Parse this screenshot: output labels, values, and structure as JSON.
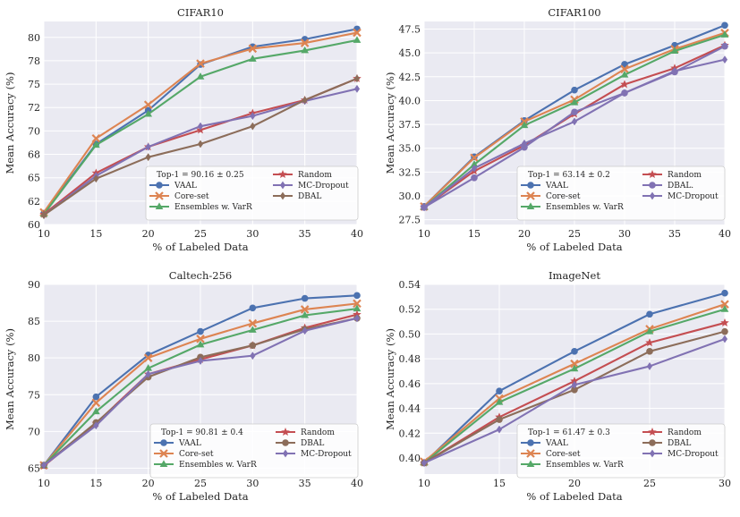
{
  "colors": {
    "VAAL": "#4c72b0",
    "Core-set": "#dd8452",
    "Ensembles w. VarR": "#55a868",
    "Random": "#c44e52",
    "MC-Dropout": "#8172b3",
    "DBAL": "#8c6d5a",
    "DBAL.": "#8172b3"
  },
  "chart_data": [
    {
      "type": "line",
      "title": "CIFAR10",
      "xlabel": "% of Labeled Data",
      "ylabel": "Mean Accuracy (%)",
      "xlim": [
        10,
        40
      ],
      "ylim": [
        60,
        81.7
      ],
      "xticks": [
        10,
        15,
        20,
        25,
        30,
        35,
        40
      ],
      "yticks": [
        60,
        62.5,
        65,
        67.5,
        70,
        72.5,
        75,
        77.5,
        80
      ],
      "ytick_labels": [
        "60",
        "62",
        "65",
        "68",
        "70",
        "72",
        "75",
        "78",
        "80"
      ],
      "x": [
        10,
        15,
        20,
        25,
        30,
        35,
        40
      ],
      "legend_title": "Top-1 = 90.16 ± 0.25",
      "series": [
        {
          "name": "VAAL",
          "marker": "circle",
          "values": [
            61.2,
            68.6,
            72.2,
            77.1,
            79.0,
            79.8,
            80.9
          ]
        },
        {
          "name": "Core-set",
          "marker": "x",
          "values": [
            61.3,
            69.2,
            72.8,
            77.2,
            78.8,
            79.4,
            80.5
          ]
        },
        {
          "name": "Ensembles w. VarR",
          "marker": "triangle",
          "values": [
            61.1,
            68.5,
            71.8,
            75.8,
            77.7,
            78.6,
            79.7
          ]
        },
        {
          "name": "Random",
          "marker": "star",
          "values": [
            61.1,
            65.5,
            68.3,
            70.1,
            71.9,
            73.3,
            75.6
          ]
        },
        {
          "name": "MC-Dropout",
          "marker": "diamond",
          "values": [
            61.0,
            65.2,
            68.3,
            70.5,
            71.6,
            73.2,
            74.5
          ]
        },
        {
          "name": "DBAL",
          "marker": "diamond",
          "values": [
            61.0,
            64.9,
            67.2,
            68.6,
            70.5,
            73.3,
            75.6
          ]
        }
      ]
    },
    {
      "type": "line",
      "title": "CIFAR100",
      "xlabel": "% of Labeled Data",
      "ylabel": "Mean Accuracy (%)",
      "xlim": [
        10,
        40
      ],
      "ylim": [
        27,
        48.3
      ],
      "xticks": [
        10,
        15,
        20,
        25,
        30,
        35,
        40
      ],
      "yticks": [
        27.5,
        30,
        32.5,
        35,
        37.5,
        40,
        42.5,
        45,
        47.5
      ],
      "ytick_labels": [
        "27.5",
        "30.0",
        "32.5",
        "35.0",
        "37.5",
        "40.0",
        "42.5",
        "45.0",
        "47.5"
      ],
      "x": [
        10,
        15,
        20,
        25,
        30,
        35,
        40
      ],
      "legend_title": "Top-1 = 63.14 ± 0.2",
      "series": [
        {
          "name": "VAAL",
          "marker": "circle",
          "values": [
            28.9,
            34.1,
            37.9,
            41.1,
            43.8,
            45.8,
            47.9
          ]
        },
        {
          "name": "Core-set",
          "marker": "x",
          "values": [
            28.9,
            34.0,
            37.8,
            40.1,
            43.3,
            45.4,
            47.1
          ]
        },
        {
          "name": "Ensembles w. VarR",
          "marker": "triangle",
          "values": [
            28.8,
            33.3,
            37.4,
            39.8,
            42.7,
            45.2,
            46.9
          ]
        },
        {
          "name": "Random",
          "marker": "star",
          "values": [
            28.8,
            32.6,
            35.3,
            38.6,
            41.7,
            43.4,
            45.8
          ]
        },
        {
          "name": "DBAL.",
          "marker": "circle",
          "values": [
            28.8,
            31.9,
            35.1,
            38.8,
            40.8,
            43.0,
            45.7
          ]
        },
        {
          "name": "MC-Dropout",
          "marker": "diamond",
          "values": [
            28.8,
            32.9,
            35.5,
            37.8,
            40.8,
            43.1,
            44.3
          ]
        }
      ]
    },
    {
      "type": "line",
      "title": "Caltech-256",
      "xlabel": "% of Labeled Data",
      "ylabel": "Mean Accuracy (%)",
      "xlim": [
        10,
        40
      ],
      "ylim": [
        64.2,
        90
      ],
      "xticks": [
        10,
        15,
        20,
        25,
        30,
        35,
        40
      ],
      "yticks": [
        65,
        70,
        75,
        80,
        85,
        90
      ],
      "ytick_labels": [
        "65",
        "70",
        "75",
        "80",
        "85",
        "90"
      ],
      "x": [
        10,
        15,
        20,
        25,
        30,
        35,
        40
      ],
      "legend_title": "Top-1 = 90.81 ± 0.4",
      "series": [
        {
          "name": "VAAL",
          "marker": "circle",
          "values": [
            65.4,
            74.7,
            80.4,
            83.6,
            86.8,
            88.1,
            88.5
          ]
        },
        {
          "name": "Core-set",
          "marker": "x",
          "values": [
            65.4,
            73.9,
            80.0,
            82.6,
            84.7,
            86.6,
            87.4
          ]
        },
        {
          "name": "Ensembles w. VarR",
          "marker": "triangle",
          "values": [
            65.4,
            72.7,
            78.6,
            81.8,
            83.8,
            85.8,
            86.7
          ]
        },
        {
          "name": "Random",
          "marker": "star",
          "values": [
            65.3,
            71.1,
            77.8,
            79.8,
            81.7,
            84.1,
            85.9
          ]
        },
        {
          "name": "DBAL",
          "marker": "circle",
          "values": [
            65.4,
            71.2,
            77.4,
            80.1,
            81.7,
            83.9,
            85.4
          ]
        },
        {
          "name": "MC-Dropout",
          "marker": "diamond",
          "values": [
            65.4,
            70.8,
            77.8,
            79.6,
            80.3,
            83.7,
            85.4
          ]
        }
      ]
    },
    {
      "type": "line",
      "title": "ImageNet",
      "xlabel": "% of Labeled Data",
      "ylabel": "Mean Accuracy (%)",
      "xlim": [
        10,
        30
      ],
      "ylim": [
        0.387,
        0.54
      ],
      "xticks": [
        10,
        15,
        20,
        25,
        30
      ],
      "yticks": [
        0.4,
        0.42,
        0.44,
        0.46,
        0.48,
        0.5,
        0.52,
        0.54
      ],
      "ytick_labels": [
        "0.40",
        "0.42",
        "0.44",
        "0.46",
        "0.48",
        "0.50",
        "0.52",
        "0.54"
      ],
      "x": [
        10,
        15,
        20,
        25,
        30
      ],
      "legend_title": "Top-1  = 61.47 ± 0.3",
      "series": [
        {
          "name": "VAAL",
          "marker": "circle",
          "values": [
            0.396,
            0.454,
            0.486,
            0.516,
            0.533
          ]
        },
        {
          "name": "Core-set",
          "marker": "x",
          "values": [
            0.397,
            0.448,
            0.476,
            0.504,
            0.524
          ]
        },
        {
          "name": "Ensembles w. VarR",
          "marker": "triangle",
          "values": [
            0.396,
            0.445,
            0.472,
            0.502,
            0.52
          ]
        },
        {
          "name": "Random",
          "marker": "star",
          "values": [
            0.396,
            0.433,
            0.462,
            0.493,
            0.509
          ]
        },
        {
          "name": "DBAL",
          "marker": "circle",
          "values": [
            0.396,
            0.431,
            0.455,
            0.486,
            0.502
          ]
        },
        {
          "name": "MC-Dropout",
          "marker": "diamond",
          "values": [
            0.396,
            0.423,
            0.459,
            0.474,
            0.496
          ]
        }
      ]
    }
  ]
}
